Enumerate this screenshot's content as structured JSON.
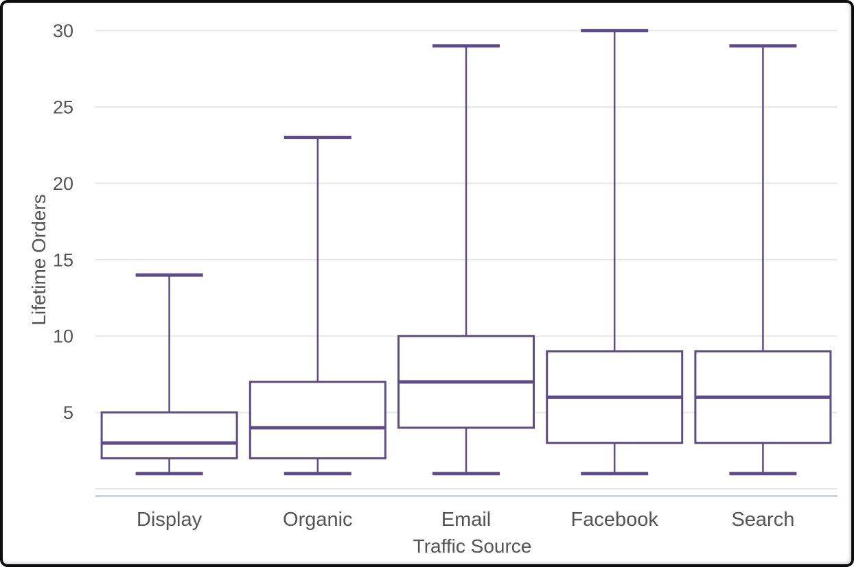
{
  "chart_data": {
    "type": "boxplot",
    "title": "",
    "xlabel": "Traffic Source",
    "ylabel": "Lifetime Orders",
    "categories": [
      "Display",
      "Organic",
      "Email",
      "Facebook",
      "Search"
    ],
    "series": [
      {
        "name": "Display",
        "min": 1,
        "q1": 2,
        "median": 3,
        "q3": 5,
        "max": 14
      },
      {
        "name": "Organic",
        "min": 1,
        "q1": 2,
        "median": 4,
        "q3": 7,
        "max": 23
      },
      {
        "name": "Email",
        "min": 1,
        "q1": 4,
        "median": 7,
        "q3": 10,
        "max": 29
      },
      {
        "name": "Facebook",
        "min": 1,
        "q1": 3,
        "median": 6,
        "q3": 9,
        "max": 30
      },
      {
        "name": "Search",
        "min": 1,
        "q1": 3,
        "median": 6,
        "q3": 9,
        "max": 29
      }
    ],
    "y_ticks": [
      5,
      10,
      15,
      20,
      25,
      30
    ],
    "ylim": [
      0,
      31
    ],
    "grid": true,
    "legend": "none",
    "colors": {
      "box_stroke": "#5e4c88",
      "box_fill": "#ffffff",
      "gridline": "#e8e8e8",
      "zero_gridline": "#e8e8e8",
      "baseline": "#c9d5e8",
      "text": "#535353",
      "frame_border": "#0c0c0e",
      "background": "#ffffff"
    }
  }
}
